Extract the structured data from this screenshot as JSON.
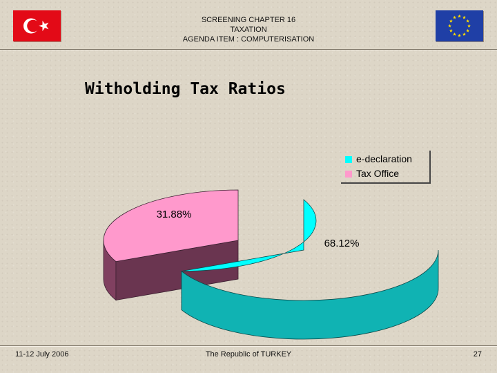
{
  "header": {
    "line1": "SCREENING CHAPTER 16",
    "line2": "TAXATION",
    "line3": "AGENDA ITEM : COMPUTERISATION"
  },
  "flags": {
    "left": "turkey-flag",
    "right": "eu-flag"
  },
  "colors": {
    "background": "#ddd6c7",
    "e_declaration": "#00ffff",
    "e_declaration_side": "#10b3b3",
    "tax_office": "#ff99cc",
    "tax_office_side": "#804060"
  },
  "chart_data": {
    "type": "pie",
    "title": "Witholding Tax Ratios",
    "three_d": true,
    "legend_position": "top-right",
    "slices": [
      {
        "name": "e-declaration",
        "value": 68.12,
        "label": "68.12%"
      },
      {
        "name": "Tax Office",
        "value": 31.88,
        "label": "31.88%"
      }
    ]
  },
  "footer": {
    "date": "11-12 July 2006",
    "center": "The Republic of TURKEY",
    "page": "27"
  }
}
